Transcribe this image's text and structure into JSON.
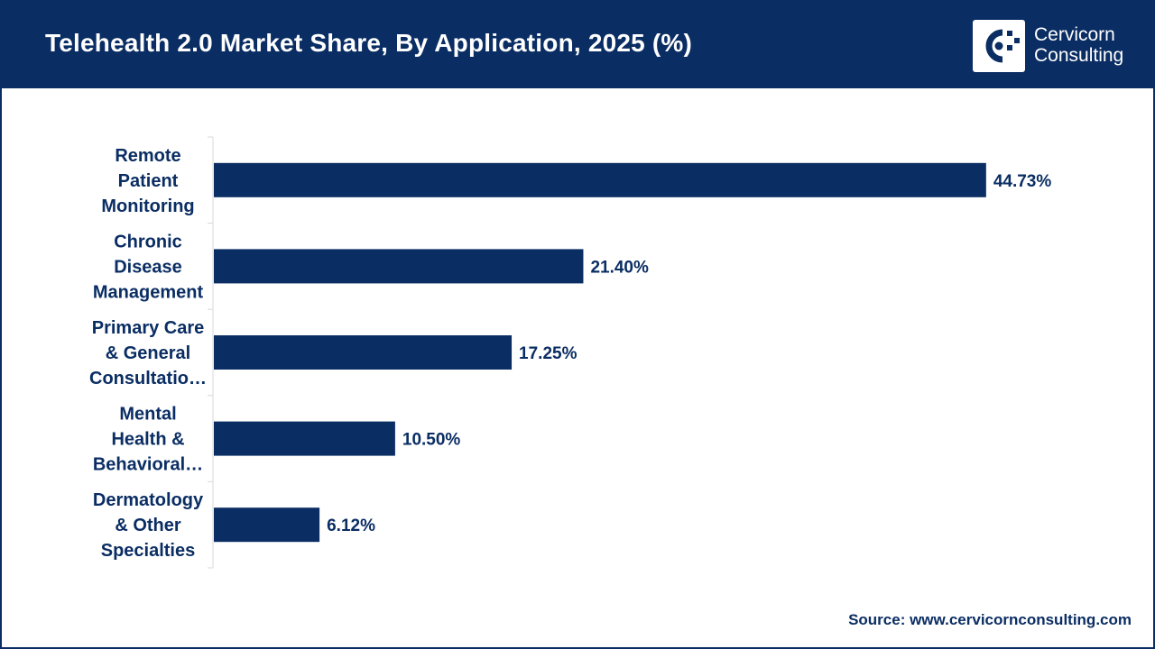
{
  "header": {
    "title": "Telehealth 2.0 Market Share, By Application, 2025 (%)",
    "logo_line1": "Cervicorn",
    "logo_line2": "Consulting"
  },
  "footer": {
    "source": "Source: www.cervicornconsulting.com"
  },
  "colors": {
    "primary": "#0a2d63",
    "background": "#ffffff"
  },
  "chart_data": {
    "type": "bar",
    "orientation": "horizontal",
    "title": "Telehealth 2.0 Market Share, By Application, 2025 (%)",
    "categories": [
      [
        "Remote",
        "Patient",
        "Monitoring"
      ],
      [
        "Chronic",
        "Disease",
        "Management"
      ],
      [
        "Primary Care",
        "& General",
        "Consultatio…"
      ],
      [
        "Mental",
        "Health &",
        "Behavioral…"
      ],
      [
        "Dermatology",
        "& Other",
        "Specialties"
      ]
    ],
    "values": [
      44.73,
      21.4,
      17.25,
      10.5,
      6.12
    ],
    "value_labels": [
      "44.73%",
      "21.40%",
      "17.25%",
      "10.50%",
      "6.12%"
    ],
    "xlim": [
      0,
      45
    ],
    "grid": false,
    "legend": "none"
  }
}
